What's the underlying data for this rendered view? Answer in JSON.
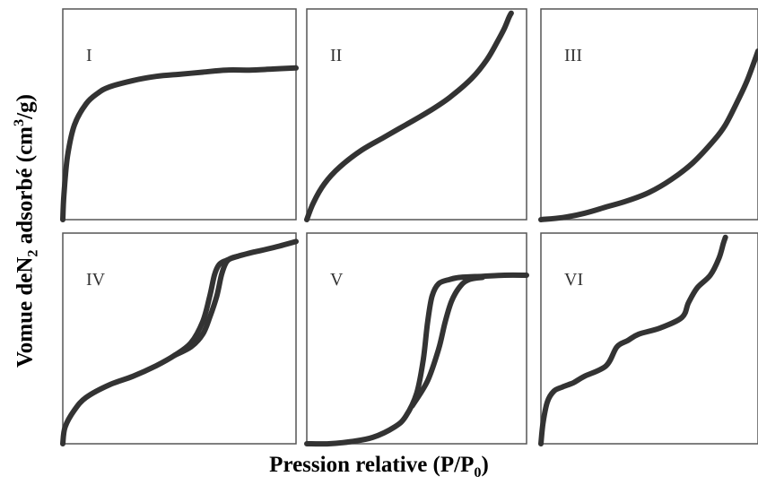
{
  "title": "",
  "axes": {
    "ylabel_parts": [
      "Vomue deN",
      "2",
      " adsorbé (cm",
      "3",
      "/g)"
    ],
    "xlabel_parts": [
      "Pression relative (P/P",
      "0",
      ")"
    ]
  },
  "style": {
    "curve_color": "#333333",
    "frame_color": "#555555"
  },
  "chart_data": [
    {
      "type": "line",
      "panel_label": "I",
      "xlim": [
        0,
        1
      ],
      "ylim": [
        0,
        1
      ],
      "series": [
        {
          "x": [
            0,
            0.005,
            0.02,
            0.05,
            0.1,
            0.15,
            0.2,
            0.3,
            0.4,
            0.5,
            0.6,
            0.7,
            0.8,
            0.9,
            1.0
          ],
          "y": [
            0.0,
            0.12,
            0.3,
            0.45,
            0.55,
            0.6,
            0.63,
            0.66,
            0.68,
            0.69,
            0.7,
            0.71,
            0.71,
            0.715,
            0.72
          ]
        }
      ]
    },
    {
      "type": "line",
      "panel_label": "II",
      "xlim": [
        0,
        1
      ],
      "ylim": [
        0,
        1
      ],
      "series": [
        {
          "x": [
            0,
            0.03,
            0.08,
            0.15,
            0.25,
            0.35,
            0.45,
            0.55,
            0.65,
            0.75,
            0.82,
            0.87,
            0.9,
            0.92,
            0.93
          ],
          "y": [
            0.0,
            0.08,
            0.17,
            0.25,
            0.33,
            0.39,
            0.45,
            0.51,
            0.58,
            0.67,
            0.76,
            0.85,
            0.91,
            0.96,
            0.98
          ]
        }
      ]
    },
    {
      "type": "line",
      "panel_label": "III",
      "xlim": [
        0,
        1
      ],
      "ylim": [
        0,
        1
      ],
      "series": [
        {
          "x": [
            0,
            0.1,
            0.2,
            0.3,
            0.4,
            0.5,
            0.6,
            0.7,
            0.8,
            0.85,
            0.9,
            0.95,
            1.0
          ],
          "y": [
            0.0,
            0.01,
            0.03,
            0.06,
            0.09,
            0.13,
            0.19,
            0.27,
            0.38,
            0.45,
            0.55,
            0.66,
            0.8
          ]
        }
      ]
    },
    {
      "type": "line",
      "panel_label": "IV",
      "xlim": [
        0,
        1
      ],
      "ylim": [
        0,
        1
      ],
      "series": [
        {
          "name": "",
          "x": [
            0,
            0.01,
            0.05,
            0.1,
            0.2,
            0.3,
            0.4,
            0.48,
            0.55,
            0.6,
            0.63,
            0.65,
            0.67,
            0.7,
            0.75,
            0.82,
            0.9,
            1.0
          ],
          "y": [
            0.0,
            0.08,
            0.16,
            0.22,
            0.28,
            0.32,
            0.37,
            0.42,
            0.48,
            0.58,
            0.7,
            0.8,
            0.85,
            0.87,
            0.89,
            0.91,
            0.93,
            0.96
          ]
        },
        {
          "name": "",
          "x": [
            0.48,
            0.55,
            0.6,
            0.63,
            0.66,
            0.68,
            0.7,
            0.72,
            0.75
          ],
          "y": [
            0.42,
            0.46,
            0.52,
            0.6,
            0.7,
            0.8,
            0.86,
            0.88,
            0.89
          ]
        }
      ]
    },
    {
      "type": "line",
      "panel_label": "V",
      "xlim": [
        0,
        1
      ],
      "ylim": [
        0,
        1
      ],
      "series": [
        {
          "name": "",
          "x": [
            0,
            0.1,
            0.2,
            0.3,
            0.4,
            0.45,
            0.5,
            0.53,
            0.55,
            0.57,
            0.6,
            0.65,
            0.7,
            0.8,
            0.9,
            1.0
          ],
          "y": [
            0.0,
            0.0,
            0.01,
            0.03,
            0.08,
            0.13,
            0.24,
            0.4,
            0.58,
            0.7,
            0.76,
            0.78,
            0.79,
            0.795,
            0.8,
            0.8
          ]
        },
        {
          "name": "",
          "x": [
            0.48,
            0.55,
            0.6,
            0.63,
            0.66,
            0.7,
            0.74,
            0.8
          ],
          "y": [
            0.18,
            0.3,
            0.45,
            0.58,
            0.68,
            0.75,
            0.78,
            0.79
          ]
        }
      ]
    },
    {
      "type": "line",
      "panel_label": "VI",
      "xlim": [
        0,
        1
      ],
      "ylim": [
        0,
        1
      ],
      "series": [
        {
          "x": [
            0,
            0.01,
            0.03,
            0.06,
            0.1,
            0.15,
            0.2,
            0.3,
            0.35,
            0.4,
            0.45,
            0.55,
            0.65,
            0.68,
            0.72,
            0.78,
            0.82,
            0.84,
            0.85
          ],
          "y": [
            0.0,
            0.1,
            0.2,
            0.25,
            0.27,
            0.29,
            0.32,
            0.37,
            0.46,
            0.49,
            0.52,
            0.55,
            0.6,
            0.67,
            0.74,
            0.8,
            0.88,
            0.95,
            0.98
          ]
        }
      ]
    }
  ]
}
